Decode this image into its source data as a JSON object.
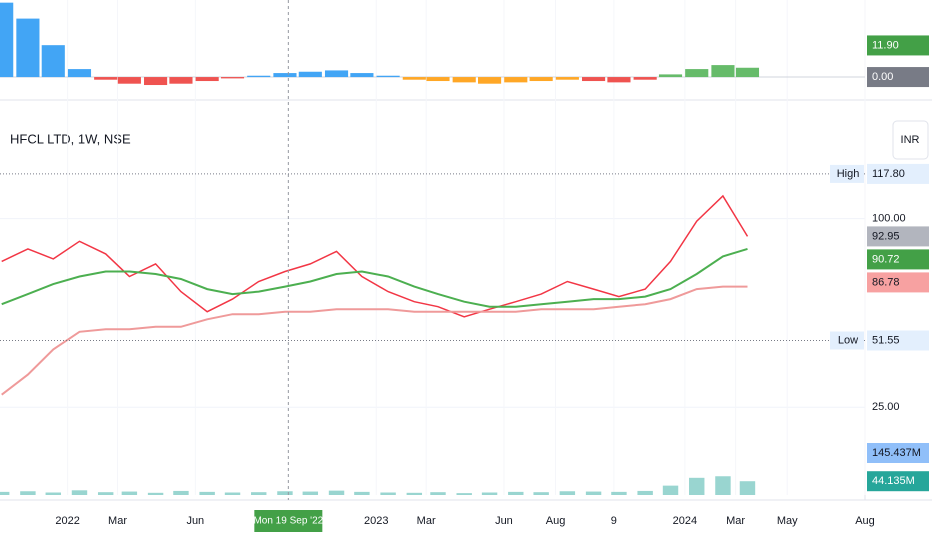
{
  "chart_data": {
    "type": "line",
    "title": "HFCL LTD, 1W, NSE",
    "currency": "INR",
    "x": [
      "2021-10-15",
      "2021-11-15",
      "2021-12-15",
      "2022-01-15",
      "2022-02-15",
      "2022-03-15",
      "2022-04-15",
      "2022-05-15",
      "2022-06-15",
      "2022-07-15",
      "2022-08-15",
      "2022-09-15",
      "2022-10-15",
      "2022-11-15",
      "2022-12-15",
      "2023-01-15",
      "2023-02-15",
      "2023-03-15",
      "2023-04-15",
      "2023-05-15",
      "2023-06-15",
      "2023-07-15",
      "2023-08-15",
      "2023-09-15",
      "2023-10-15",
      "2023-11-15",
      "2023-12-15",
      "2024-01-15",
      "2024-02-15",
      "2024-03-15"
    ],
    "series": [
      {
        "color": "#f23645",
        "values": [
          83,
          88,
          84,
          91,
          86,
          77,
          82,
          71,
          63,
          68,
          75,
          79,
          82,
          87,
          77,
          71,
          67,
          65,
          61,
          64,
          67,
          70,
          75,
          72,
          69,
          72,
          83,
          99,
          109,
          92.95
        ]
      },
      {
        "color": "#4caf50",
        "values": [
          66,
          70,
          74,
          77,
          79,
          79,
          78,
          76,
          72,
          70,
          71,
          73,
          75,
          78,
          79,
          77,
          73,
          70,
          67,
          65,
          65,
          66,
          67,
          68,
          68,
          69,
          72,
          78,
          85,
          88
        ]
      },
      {
        "color": "#ef9a9a",
        "values": [
          30,
          38,
          48,
          55,
          56,
          56,
          57,
          57,
          60,
          62,
          62,
          63,
          63,
          64,
          64,
          64,
          63,
          63,
          63,
          63,
          63,
          64,
          64,
          64,
          65,
          66,
          68,
          72,
          73,
          73
        ]
      }
    ],
    "xlim": [
      "2021-10-13",
      "2024-08-01"
    ],
    "xticks": [
      {
        "value": "2022-01-01",
        "label": "2022"
      },
      {
        "value": "2022-03-01",
        "label": "Mar"
      },
      {
        "value": "2022-06-01",
        "label": "Jun"
      },
      {
        "value": "2023-01-01",
        "label": "2023"
      },
      {
        "value": "2023-03-01",
        "label": "Mar"
      },
      {
        "value": "2023-06-01",
        "label": "Jun"
      },
      {
        "value": "2023-08-01",
        "label": "Aug"
      },
      {
        "value": "2023-10-09",
        "label": "9"
      },
      {
        "value": "2024-01-01",
        "label": "2024"
      },
      {
        "value": "2024-03-01",
        "label": "Mar"
      },
      {
        "value": "2024-05-01",
        "label": "May"
      },
      {
        "value": "2024-08-01",
        "label": "Aug"
      }
    ],
    "ylim": [
      10,
      146
    ],
    "yticks": [
      {
        "value": 100,
        "label": "100.00"
      },
      {
        "value": 25,
        "label": "25.00"
      }
    ],
    "price_labels": [
      {
        "value": 117.8,
        "label": "117.80",
        "tag": "High",
        "color": "#e3effd"
      },
      {
        "value": 92.95,
        "label": "92.95",
        "color": "#b2b5be"
      },
      {
        "value": 90.72,
        "label": "90.72",
        "color": "#43a047"
      },
      {
        "value": 86.78,
        "label": "86.78",
        "color": "#f7a1a1"
      },
      {
        "value": 51.55,
        "label": "51.55",
        "tag": "Low",
        "color": "#e3effd"
      }
    ],
    "crosshair": {
      "value": "2022-09-19",
      "label": "Mon 19 Sep '22"
    },
    "volume": {
      "values": [
        10,
        12,
        8,
        15,
        9,
        11,
        7,
        13,
        10,
        8,
        9,
        12,
        11,
        14,
        10,
        8,
        7,
        9,
        6,
        8,
        10,
        9,
        12,
        11,
        10,
        13,
        30,
        55,
        60,
        44.135
      ],
      "color": "#80cbc4",
      "ylim": [
        0,
        160
      ],
      "labels": [
        {
          "value": 145.437,
          "label": "145.437M",
          "color": "#90bff9"
        },
        {
          "value": 44.135,
          "label": "44.135M",
          "color": "#26a69a"
        }
      ]
    },
    "histogram": {
      "values": [
        28,
        22,
        12,
        3,
        -1,
        -2.5,
        -3,
        -2.5,
        -1.5,
        -0.5,
        0.5,
        1.5,
        2,
        2.5,
        1.5,
        0.5,
        -1,
        -1.5,
        -2,
        -2.5,
        -2,
        -1.5,
        -1,
        -1.5,
        -2,
        -1,
        1,
        3,
        4.5,
        3.5
      ],
      "colors": [
        "#42a5f5",
        "#42a5f5",
        "#42a5f5",
        "#42a5f5",
        "#ef5350",
        "#ef5350",
        "#ef5350",
        "#ef5350",
        "#ef5350",
        "#ef5350",
        "#42a5f5",
        "#42a5f5",
        "#42a5f5",
        "#42a5f5",
        "#42a5f5",
        "#42a5f5",
        "#ffa726",
        "#ffa726",
        "#ffa726",
        "#ffa726",
        "#ffa726",
        "#ffa726",
        "#ffa726",
        "#ef5350",
        "#ef5350",
        "#ef5350",
        "#66bb6a",
        "#66bb6a",
        "#66bb6a",
        "#66bb6a"
      ],
      "ylim": [
        -6,
        29
      ],
      "labels": [
        {
          "value": 11.9,
          "label": "11.90",
          "color": "#43a047"
        },
        {
          "value": 0,
          "label": "0.00",
          "color": "#787b86"
        }
      ]
    }
  }
}
